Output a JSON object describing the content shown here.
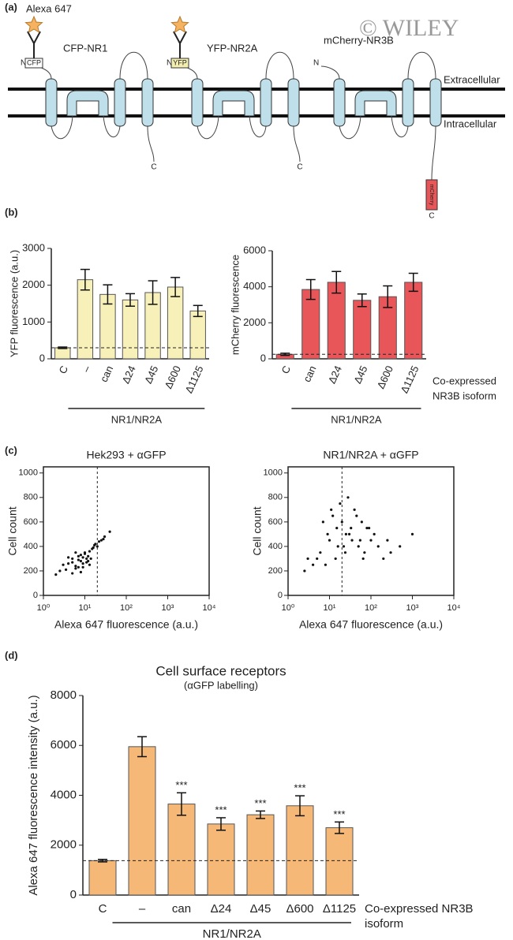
{
  "diagram": {
    "panel_label": "(a)",
    "watermark": "© WILEY",
    "fluorophore": "Alexa 647",
    "receptors": [
      {
        "name": "CFP-NR1",
        "tag": "CFP",
        "n": "N",
        "c": "C"
      },
      {
        "name": "YFP-NR2A",
        "tag": "YFP",
        "n": "N",
        "c": "C"
      },
      {
        "name": "mCherry-NR3B",
        "tag": "mCherry",
        "n": "N",
        "c": "C"
      }
    ],
    "extracellular": "Extracellular",
    "intracellular": "Intracellular"
  },
  "chart_data": [
    {
      "type": "bar",
      "panel": "(b)",
      "ylabel": "YFP fluorescence (a.u.)",
      "categories": [
        "C",
        "–",
        "can",
        "Δ24",
        "Δ45",
        "Δ600",
        "Δ1125"
      ],
      "values": [
        300,
        2150,
        1750,
        1600,
        1800,
        1950,
        1300
      ],
      "errors": [
        20,
        280,
        260,
        170,
        320,
        260,
        150
      ],
      "color": "#f7f0b8",
      "ylim": [
        0,
        3000
      ],
      "yticks": [
        0,
        1000,
        2000,
        3000
      ],
      "reference_line": true,
      "group_label": "NR1/NR2A"
    },
    {
      "type": "bar",
      "ylabel": "mCherry fluorescence",
      "categories": [
        "C",
        "can",
        "Δ24",
        "Δ45",
        "Δ600",
        "Δ1125"
      ],
      "values": [
        250,
        3850,
        4250,
        3250,
        3450,
        4250
      ],
      "errors": [
        60,
        550,
        600,
        350,
        600,
        500
      ],
      "color": "#e8565a",
      "ylim": [
        0,
        6000
      ],
      "yticks": [
        0,
        2000,
        4000,
        6000
      ],
      "reference_line": true,
      "group_label": "NR1/NR2A",
      "note": [
        "Co-expressed",
        "NR3B isoform"
      ]
    },
    {
      "type": "scatter",
      "panel": "(c)",
      "title": "Hek293 + αGFP",
      "xlabel": "Alexa 647 fluorescence (a.u.)",
      "ylabel": "Cell count",
      "log_x": true,
      "xlim": [
        1,
        10000
      ],
      "xticks": [
        {
          "value": 1,
          "label": "10⁰"
        },
        {
          "value": 10,
          "label": "10¹"
        },
        {
          "value": 100,
          "label": "10²"
        },
        {
          "value": 1000,
          "label": "10³"
        },
        {
          "value": 10000,
          "label": "10⁴"
        }
      ],
      "ylim": [
        0,
        1050
      ],
      "yticks": [
        0,
        200,
        400,
        600,
        800,
        1000
      ],
      "gate_x": 20,
      "color": "#111",
      "x": [
        3,
        5,
        8,
        10,
        12,
        6,
        4,
        15,
        20,
        7,
        9,
        11,
        2.5,
        18,
        25,
        6,
        13,
        8,
        5,
        30,
        9,
        14,
        4,
        7,
        10,
        16,
        3.5,
        22,
        12,
        6,
        40,
        8,
        11,
        5,
        17,
        9,
        2,
        28,
        13,
        7
      ],
      "y": [
        250,
        300,
        280,
        350,
        320,
        220,
        260,
        380,
        400,
        290,
        310,
        270,
        200,
        420,
        450,
        240,
        360,
        330,
        180,
        480,
        260,
        300,
        310,
        230,
        340,
        390,
        210,
        440,
        280,
        350,
        520,
        190,
        300,
        270,
        410,
        230,
        170,
        460,
        250,
        320
      ]
    },
    {
      "type": "scatter",
      "title": "NR1/NR2A + αGFP",
      "xlabel": "Alexa 647 fluorescence (a.u.)",
      "ylabel": "Cell count",
      "log_x": true,
      "xlim": [
        1,
        10000
      ],
      "xticks": [
        {
          "value": 1,
          "label": "10⁰"
        },
        {
          "value": 10,
          "label": "10¹"
        },
        {
          "value": 100,
          "label": "10²"
        },
        {
          "value": 1000,
          "label": "10³"
        },
        {
          "value": 10000,
          "label": "10⁴"
        }
      ],
      "ylim": [
        0,
        1050
      ],
      "yticks": [
        0,
        200,
        400,
        600,
        800,
        1000
      ],
      "gate_x": 20,
      "color": "#111",
      "x": [
        5,
        10,
        20,
        30,
        50,
        8,
        15,
        40,
        70,
        100,
        3,
        12,
        25,
        60,
        150,
        6,
        18,
        35,
        80,
        200,
        4,
        9,
        22,
        45,
        120,
        300,
        7,
        14,
        28,
        55,
        90,
        2.5,
        16,
        33,
        65,
        250,
        11,
        24,
        500,
        1000
      ],
      "y": [
        300,
        450,
        600,
        500,
        400,
        250,
        550,
        700,
        350,
        450,
        300,
        650,
        500,
        600,
        400,
        350,
        750,
        450,
        550,
        300,
        250,
        500,
        400,
        650,
        500,
        350,
        600,
        300,
        800,
        450,
        550,
        200,
        400,
        550,
        300,
        450,
        700,
        350,
        400,
        500
      ]
    },
    {
      "type": "bar",
      "panel": "(d)",
      "title": "Cell surface receptors",
      "subtitle": "(αGFP labelling)",
      "ylabel": "Alexa 647 fluorescence intensity (a.u.)",
      "categories": [
        "C",
        "–",
        "can",
        "Δ24",
        "Δ45",
        "Δ600",
        "Δ1125"
      ],
      "values": [
        1380,
        5950,
        3650,
        2850,
        3220,
        3580,
        2700
      ],
      "errors": [
        50,
        400,
        450,
        250,
        150,
        400,
        230
      ],
      "significance": [
        null,
        null,
        "***",
        "***",
        "***",
        "***",
        "***"
      ],
      "color": "#f5b877",
      "ylim": [
        0,
        8000
      ],
      "yticks": [
        0,
        2000,
        4000,
        6000,
        8000
      ],
      "reference_line": true,
      "group_label": "NR1/NR2A",
      "note": [
        "Co-expressed NR3B",
        "isoform"
      ]
    }
  ]
}
